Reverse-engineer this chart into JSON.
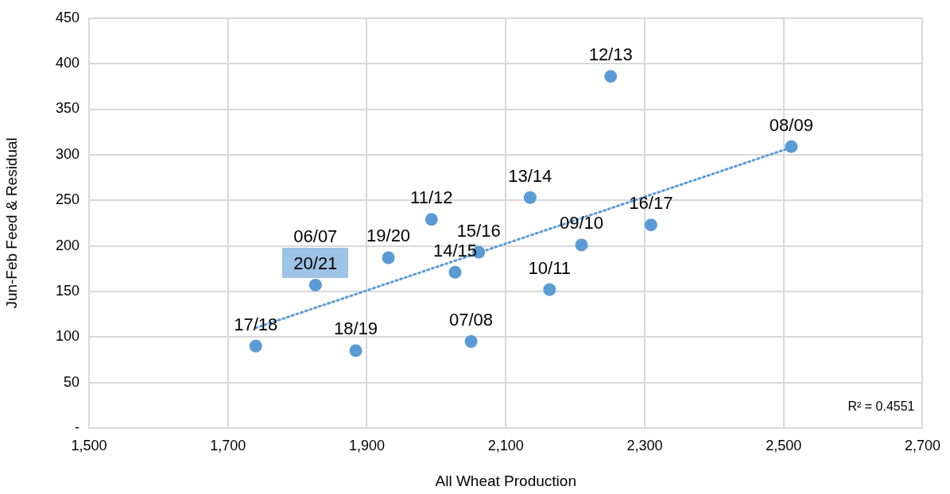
{
  "chart_data": {
    "type": "scatter",
    "xlabel": "All Wheat Production",
    "ylabel": "Jun-Feb Feed & Residual",
    "xlim": [
      1500,
      2700
    ],
    "xticks": [
      {
        "value": 1500,
        "label": "1,500"
      },
      {
        "value": 1700,
        "label": "1,700"
      },
      {
        "value": 1900,
        "label": "1,900"
      },
      {
        "value": 2100,
        "label": "2,100"
      },
      {
        "value": 2300,
        "label": "2,300"
      },
      {
        "value": 2500,
        "label": "2,500"
      },
      {
        "value": 2700,
        "label": "2,700"
      }
    ],
    "ylim": [
      0,
      450
    ],
    "yticks": [
      {
        "value": 0,
        "label": "-"
      },
      50,
      100,
      150,
      200,
      250,
      300,
      350,
      400,
      450
    ],
    "grid": true,
    "legend": false,
    "series": [
      {
        "color": "#5b9bd5",
        "marker": "circle",
        "x": [
          1740,
          1884,
          1826,
          1931,
          1993,
          2027,
          2061,
          2050,
          2163,
          2209,
          2135,
          2251,
          2309,
          2511
        ],
        "values": [
          90,
          85,
          157,
          187,
          229,
          171,
          193,
          95,
          152,
          201,
          253,
          386,
          223,
          309
        ]
      },
      {
        "type": "line",
        "color": "#5b9bd5",
        "marker": "none",
        "line_style": "dotted",
        "x": [
          1740,
          2511
        ],
        "values": [
          110,
          308
        ]
      }
    ],
    "annotations": [
      {
        "text": "17/18",
        "x": 1740,
        "y": 90
      },
      {
        "text": "18/19",
        "x": 1884,
        "y": 85
      },
      {
        "text": "20/21",
        "x": 1826,
        "y": 157
      },
      {
        "text": "06/07",
        "x": 1826,
        "y": 157
      },
      {
        "text": "19/20",
        "x": 1931,
        "y": 187
      },
      {
        "text": "11/12",
        "x": 1993,
        "y": 229
      },
      {
        "text": "14/15",
        "x": 2027,
        "y": 171
      },
      {
        "text": "15/16",
        "x": 2061,
        "y": 193
      },
      {
        "text": "07/08",
        "x": 2050,
        "y": 95
      },
      {
        "text": "10/11",
        "x": 2163,
        "y": 152
      },
      {
        "text": "09/10",
        "x": 2209,
        "y": 201
      },
      {
        "text": "13/14",
        "x": 2135,
        "y": 253
      },
      {
        "text": "12/13",
        "x": 2251,
        "y": 386
      },
      {
        "text": "16/17",
        "x": 2309,
        "y": 223
      },
      {
        "text": "08/09",
        "x": 2511,
        "y": 309
      },
      "R² = 0.4551"
    ]
  }
}
